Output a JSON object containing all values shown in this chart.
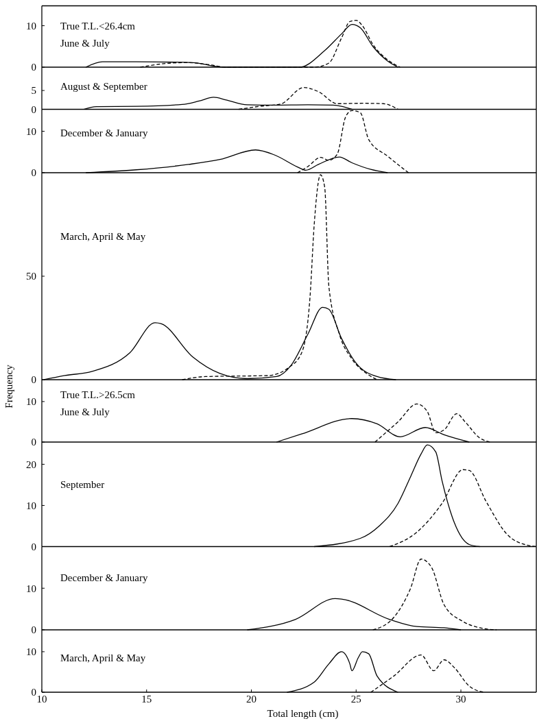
{
  "chart_data": [
    {
      "type": "line",
      "title": "June & July",
      "annotations": [
        "True T.L.<26.4cm"
      ],
      "xlim": [
        10,
        33.6
      ],
      "ylim": [
        0,
        14.8
      ],
      "yticks": [
        0,
        10
      ],
      "tick_labels": "y",
      "series": [
        {
          "color": "#000000",
          "line_style": "solid",
          "x": [
            12.1,
            12.9,
            14.5,
            17.2,
            18.3,
            18.8,
            22.3,
            23.5,
            24.3,
            24.8,
            25.2,
            25.8,
            26.5,
            27.0
          ],
          "values": [
            0,
            1.3,
            1.3,
            1.1,
            0.2,
            0,
            0,
            4,
            8,
            10.3,
            9.5,
            5,
            1.5,
            0
          ]
        },
        {
          "color": "#000000",
          "line_style": "dashed",
          "x": [
            14.7,
            16.2,
            17.0,
            18.1,
            18.8,
            23.0,
            23.7,
            24.3,
            24.7,
            25.0,
            25.3,
            25.8,
            26.5,
            27.1
          ],
          "values": [
            0,
            1.0,
            1.1,
            0.5,
            0,
            0,
            1,
            7,
            11,
            11.3,
            10,
            5.5,
            1.8,
            0
          ]
        }
      ]
    },
    {
      "type": "line",
      "title": "August & September",
      "xlim": [
        10,
        33.6
      ],
      "ylim": [
        0,
        11.2
      ],
      "yticks": [
        0,
        5
      ],
      "tick_labels": "y",
      "series": [
        {
          "color": "#000000",
          "line_style": "solid",
          "x": [
            12.0,
            12.6,
            14.5,
            16.7,
            17.5,
            18.2,
            18.8,
            19.8,
            21.1,
            22.7,
            23.9,
            24.3,
            24.8
          ],
          "values": [
            0,
            0.7,
            0.8,
            1.3,
            2.2,
            3.2,
            2.5,
            1.2,
            1.1,
            1.2,
            1.1,
            0.8,
            0
          ]
        },
        {
          "color": "#000000",
          "line_style": "dashed",
          "x": [
            19.4,
            20.4,
            21.4,
            22.5,
            23.2,
            24.1,
            25.3,
            26.3,
            27.0
          ],
          "values": [
            0,
            0.8,
            1.4,
            5.8,
            4.7,
            1.5,
            1.6,
            1.5,
            0
          ]
        }
      ]
    },
    {
      "type": "line",
      "title": "December & January",
      "xlim": [
        10,
        33.6
      ],
      "ylim": [
        0,
        15.3
      ],
      "yticks": [
        0,
        10
      ],
      "tick_labels": "y",
      "series": [
        {
          "color": "#000000",
          "line_style": "solid",
          "x": [
            12.1,
            14.5,
            17.0,
            18.5,
            20.2,
            21.1,
            22.2,
            22.6,
            23.2,
            24.2,
            24.8,
            25.7,
            26.5
          ],
          "values": [
            0,
            0.7,
            2,
            3.2,
            5.5,
            4.3,
            1.4,
            0.6,
            2,
            3.8,
            2.4,
            0.8,
            0
          ]
        },
        {
          "color": "#000000",
          "line_style": "dashed",
          "x": [
            22.2,
            22.7,
            23.3,
            23.7,
            24.1,
            24.5,
            24.8,
            25.2,
            25.6,
            26.5,
            27.5
          ],
          "values": [
            0,
            1.5,
            3.7,
            3,
            4.5,
            13.5,
            15.0,
            14.5,
            8,
            4,
            0
          ]
        }
      ]
    },
    {
      "type": "line",
      "title": "March, April & May",
      "xlim": [
        10,
        33.6
      ],
      "ylim": [
        0,
        100
      ],
      "yticks": [
        0,
        50
      ],
      "tick_labels": "y",
      "series": [
        {
          "color": "#000000",
          "line_style": "solid",
          "x": [
            10.1,
            11.1,
            12.4,
            14.2,
            15.4,
            15.7,
            17.2,
            18.5,
            19.8,
            21.2,
            21.9,
            22.7,
            23.4,
            23.7,
            24.3,
            25.0,
            26.0,
            26.9
          ],
          "values": [
            0,
            2,
            4,
            13,
            27.5,
            27,
            11,
            3,
            0.5,
            1.5,
            7,
            22,
            35,
            34,
            20,
            8,
            1.5,
            0
          ]
        },
        {
          "color": "#000000",
          "line_style": "dashed",
          "x": [
            16.7,
            17.8,
            20.8,
            21.8,
            22.4,
            22.8,
            23.0,
            23.3,
            23.5,
            23.7,
            24.2,
            24.8,
            25.5,
            26.0
          ],
          "values": [
            0,
            1.5,
            2,
            6,
            13,
            40,
            75,
            99,
            93,
            45,
            22,
            10,
            3,
            0
          ]
        }
      ]
    },
    {
      "type": "line",
      "title": "June & July",
      "annotations": [
        "True T.L.>26.5cm"
      ],
      "ylabel": "Frequency",
      "xlim": [
        10,
        33.6
      ],
      "ylim": [
        0,
        15.4
      ],
      "yticks": [
        0,
        10
      ],
      "tick_labels": "y",
      "series": [
        {
          "color": "#000000",
          "line_style": "solid",
          "x": [
            21.2,
            22.4,
            24.8,
            26.0,
            27.1,
            28.3,
            29.2,
            30.4
          ],
          "values": [
            0,
            2,
            5.8,
            4.5,
            1.3,
            3.6,
            1.8,
            0
          ]
        },
        {
          "color": "#000000",
          "line_style": "dashed",
          "x": [
            25.9,
            27.0,
            27.9,
            28.4,
            28.8,
            29.2,
            29.8,
            30.2,
            30.9,
            31.4
          ],
          "values": [
            0,
            5,
            9.4,
            7.5,
            2.3,
            3,
            7,
            5,
            1,
            0
          ]
        }
      ]
    },
    {
      "type": "line",
      "title": "September",
      "xlim": [
        10,
        33.6
      ],
      "ylim": [
        0,
        25.4
      ],
      "yticks": [
        0,
        10,
        20
      ],
      "tick_labels": "y",
      "series": [
        {
          "color": "#000000",
          "line_style": "solid",
          "x": [
            23.0,
            25.2,
            26.1,
            27.0,
            27.6,
            28.1,
            28.4,
            28.8,
            29.1,
            29.6,
            30.4,
            30.9
          ],
          "values": [
            0,
            2,
            5,
            10.5,
            17,
            22.5,
            24.7,
            23,
            16,
            7,
            0.5,
            0
          ]
        },
        {
          "color": "#000000",
          "line_style": "dashed",
          "x": [
            26.6,
            27.9,
            29.1,
            30.1,
            30.4,
            31.2,
            32.2,
            33.2,
            33.6
          ],
          "values": [
            0,
            3.5,
            10.5,
            18.7,
            18.5,
            11,
            3,
            0.3,
            0
          ]
        }
      ]
    },
    {
      "type": "line",
      "title": "December & January",
      "xlim": [
        10,
        33.6
      ],
      "ylim": [
        0,
        20
      ],
      "yticks": [
        0,
        10
      ],
      "tick_labels": "y",
      "series": [
        {
          "color": "#000000",
          "line_style": "solid",
          "x": [
            19.8,
            22.1,
            24.0,
            24.3,
            26.6,
            27.9,
            29.2,
            30.0
          ],
          "values": [
            0,
            2.5,
            7.5,
            7.4,
            2.5,
            0.8,
            0.5,
            0
          ]
        },
        {
          "color": "#000000",
          "line_style": "dashed",
          "x": [
            25.8,
            26.8,
            27.6,
            28.1,
            28.6,
            29.2,
            30.1,
            30.9,
            31.7
          ],
          "values": [
            0,
            3,
            10,
            17,
            15,
            6,
            2,
            0.5,
            0
          ]
        }
      ]
    },
    {
      "type": "line",
      "title": "March, April & May",
      "xlabel": "Total length (cm)",
      "xlim": [
        10,
        33.6
      ],
      "xticks": [
        10,
        15,
        20,
        25,
        30
      ],
      "ylim": [
        0,
        15.4
      ],
      "yticks": [
        0,
        10
      ],
      "series": [
        {
          "color": "#000000",
          "line_style": "solid",
          "x": [
            21.7,
            23.0,
            23.7,
            24.3,
            24.7,
            24.8,
            25.1,
            25.3,
            25.6,
            26.0,
            27.0
          ],
          "values": [
            0,
            2.5,
            7,
            10,
            7,
            5.3,
            8.5,
            10,
            9.5,
            4,
            0
          ]
        },
        {
          "color": "#000000",
          "line_style": "dashed",
          "x": [
            25.7,
            26.8,
            28.1,
            28.7,
            29.2,
            29.7,
            30.4,
            31.1
          ],
          "values": [
            0,
            4,
            9.2,
            5.3,
            8,
            6,
            1.5,
            0
          ]
        }
      ]
    }
  ]
}
